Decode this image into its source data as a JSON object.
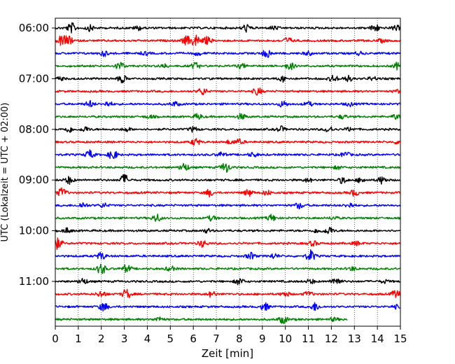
{
  "chart_data": {
    "type": "line",
    "title": "",
    "xlabel": "Zeit  [min]",
    "ylabel": "UTC (Lokalzeit = UTC + 02:00)",
    "xlim": [
      0,
      15
    ],
    "x_ticks": [
      "0",
      "1",
      "2",
      "3",
      "4",
      "5",
      "6",
      "7",
      "8",
      "9",
      "10",
      "11",
      "12",
      "13",
      "14",
      "15"
    ],
    "y_ticks": [
      "06:00",
      "07:00",
      "08:00",
      "09:00",
      "10:00",
      "11:00"
    ],
    "grid": "vertical dotted",
    "row_minutes": 15,
    "start_time": "06:00",
    "rows": 24,
    "last_row_end_min": 12.7,
    "colors": [
      "#000000",
      "#ff0000",
      "#0000ff",
      "#008000"
    ],
    "series": [
      {
        "row": 0,
        "color": "#000000",
        "bursts": [
          [
            0.7,
            1.6
          ],
          [
            1.5,
            0.9
          ],
          [
            3.6,
            0.7
          ],
          [
            8.3,
            1.2
          ],
          [
            9.5,
            0.6
          ],
          [
            13.9,
            1.2
          ],
          [
            14.8,
            0.8
          ]
        ]
      },
      {
        "row": 1,
        "color": "#ff0000",
        "bursts": [
          [
            0.3,
            1.8
          ],
          [
            0.6,
            1.2
          ],
          [
            5.7,
            1.4
          ],
          [
            6.1,
            2.0
          ],
          [
            6.6,
            1.2
          ],
          [
            10.1,
            1.0
          ],
          [
            14.2,
            0.5
          ]
        ]
      },
      {
        "row": 2,
        "color": "#0000ff",
        "bursts": [
          [
            2.1,
            0.9
          ],
          [
            3.9,
            0.5
          ],
          [
            6.2,
            0.6
          ],
          [
            9.2,
            1.4
          ],
          [
            11.0,
            0.6
          ],
          [
            13.2,
            0.5
          ]
        ]
      },
      {
        "row": 3,
        "color": "#008000",
        "bursts": [
          [
            2.8,
            1.3
          ],
          [
            4.7,
            0.6
          ],
          [
            6.1,
            1.0
          ],
          [
            8.1,
            0.7
          ],
          [
            10.2,
            1.2
          ],
          [
            14.9,
            1.2
          ]
        ]
      },
      {
        "row": 4,
        "color": "#000000",
        "bursts": [
          [
            0.2,
            0.5
          ],
          [
            2.9,
            1.2
          ],
          [
            9.9,
            0.9
          ],
          [
            12.1,
            1.1
          ],
          [
            12.7,
            1.0
          ],
          [
            13.8,
            0.6
          ]
        ]
      },
      {
        "row": 5,
        "color": "#ff0000",
        "bursts": [
          [
            6.4,
            1.2
          ],
          [
            8.8,
            1.2
          ],
          [
            14.9,
            0.5
          ]
        ]
      },
      {
        "row": 6,
        "color": "#0000ff",
        "bursts": [
          [
            1.5,
            1.0
          ],
          [
            2.3,
            0.8
          ],
          [
            5.2,
            0.7
          ],
          [
            9.9,
            1.0
          ],
          [
            11.0,
            0.7
          ],
          [
            12.8,
            0.6
          ]
        ]
      },
      {
        "row": 7,
        "color": "#008000",
        "bursts": [
          [
            4.1,
            0.5
          ],
          [
            6.2,
            0.9
          ],
          [
            8.1,
            0.9
          ],
          [
            12.5,
            0.6
          ],
          [
            14.8,
            0.7
          ]
        ]
      },
      {
        "row": 8,
        "color": "#000000",
        "bursts": [
          [
            0.6,
            0.9
          ],
          [
            1.3,
            0.8
          ],
          [
            3.1,
            0.6
          ],
          [
            6.0,
            0.8
          ],
          [
            9.8,
            0.9
          ],
          [
            11.9,
            1.0
          ],
          [
            12.8,
            0.6
          ]
        ]
      },
      {
        "row": 9,
        "color": "#ff0000",
        "bursts": [
          [
            6.1,
            1.2
          ],
          [
            7.6,
            0.6
          ],
          [
            8.0,
            0.8
          ],
          [
            14.9,
            0.5
          ]
        ]
      },
      {
        "row": 10,
        "color": "#0000ff",
        "bursts": [
          [
            1.5,
            1.4
          ],
          [
            2.5,
            1.6
          ],
          [
            7.2,
            0.7
          ],
          [
            8.6,
            0.7
          ],
          [
            12.6,
            0.9
          ]
        ]
      },
      {
        "row": 11,
        "color": "#008000",
        "bursts": [
          [
            5.6,
            1.4
          ],
          [
            7.4,
            1.7
          ],
          [
            12.3,
            0.5
          ]
        ]
      },
      {
        "row": 12,
        "color": "#000000",
        "bursts": [
          [
            0.6,
            1.2
          ],
          [
            3.0,
            1.8
          ],
          [
            11.0,
            0.6
          ],
          [
            12.5,
            1.0
          ],
          [
            13.3,
            0.8
          ],
          [
            14.2,
            1.2
          ]
        ]
      },
      {
        "row": 13,
        "color": "#ff0000",
        "bursts": [
          [
            0.3,
            1.5
          ],
          [
            6.7,
            1.1
          ],
          [
            8.4,
            1.1
          ],
          [
            9.2,
            0.8
          ],
          [
            13.0,
            1.0
          ]
        ]
      },
      {
        "row": 14,
        "color": "#0000ff",
        "bursts": [
          [
            1.2,
            0.9
          ],
          [
            2.1,
            0.7
          ],
          [
            10.6,
            1.0
          ],
          [
            12.8,
            0.8
          ]
        ]
      },
      {
        "row": 15,
        "color": "#008000",
        "bursts": [
          [
            4.4,
            1.3
          ],
          [
            6.8,
            0.8
          ],
          [
            9.4,
            1.1
          ],
          [
            12.1,
            0.5
          ]
        ]
      },
      {
        "row": 16,
        "color": "#000000",
        "bursts": [
          [
            0.5,
            0.8
          ],
          [
            6.6,
            0.6
          ],
          [
            11.4,
            0.7
          ],
          [
            11.9,
            1.2
          ]
        ]
      },
      {
        "row": 17,
        "color": "#ff0000",
        "bursts": [
          [
            0.1,
            1.8
          ],
          [
            6.4,
            1.1
          ],
          [
            11.2,
            0.8
          ],
          [
            13.1,
            0.6
          ]
        ]
      },
      {
        "row": 18,
        "color": "#0000ff",
        "bursts": [
          [
            2.0,
            1.2
          ],
          [
            8.5,
            1.1
          ],
          [
            9.5,
            0.8
          ],
          [
            11.1,
            1.9
          ]
        ]
      },
      {
        "row": 19,
        "color": "#008000",
        "bursts": [
          [
            2.0,
            1.8
          ],
          [
            3.1,
            1.2
          ],
          [
            5.0,
            0.8
          ],
          [
            12.9,
            0.6
          ]
        ]
      },
      {
        "row": 20,
        "color": "#000000",
        "bursts": [
          [
            1.2,
            1.0
          ],
          [
            8.0,
            1.1
          ],
          [
            11.1,
            0.7
          ],
          [
            12.2,
            1.5
          ],
          [
            14.3,
            0.5
          ]
        ]
      },
      {
        "row": 21,
        "color": "#ff0000",
        "bursts": [
          [
            2.0,
            1.0
          ],
          [
            3.1,
            1.6
          ],
          [
            6.8,
            0.9
          ],
          [
            10.0,
            0.8
          ],
          [
            11.0,
            0.8
          ],
          [
            14.8,
            1.2
          ]
        ]
      },
      {
        "row": 22,
        "color": "#0000ff",
        "bursts": [
          [
            2.1,
            1.4
          ],
          [
            9.1,
            1.2
          ],
          [
            11.3,
            1.3
          ],
          [
            14.8,
            0.5
          ]
        ]
      },
      {
        "row": 23,
        "color": "#008000",
        "bursts": [
          [
            4.5,
            0.7
          ],
          [
            9.9,
            1.2
          ],
          [
            12.1,
            0.5
          ]
        ]
      }
    ]
  }
}
